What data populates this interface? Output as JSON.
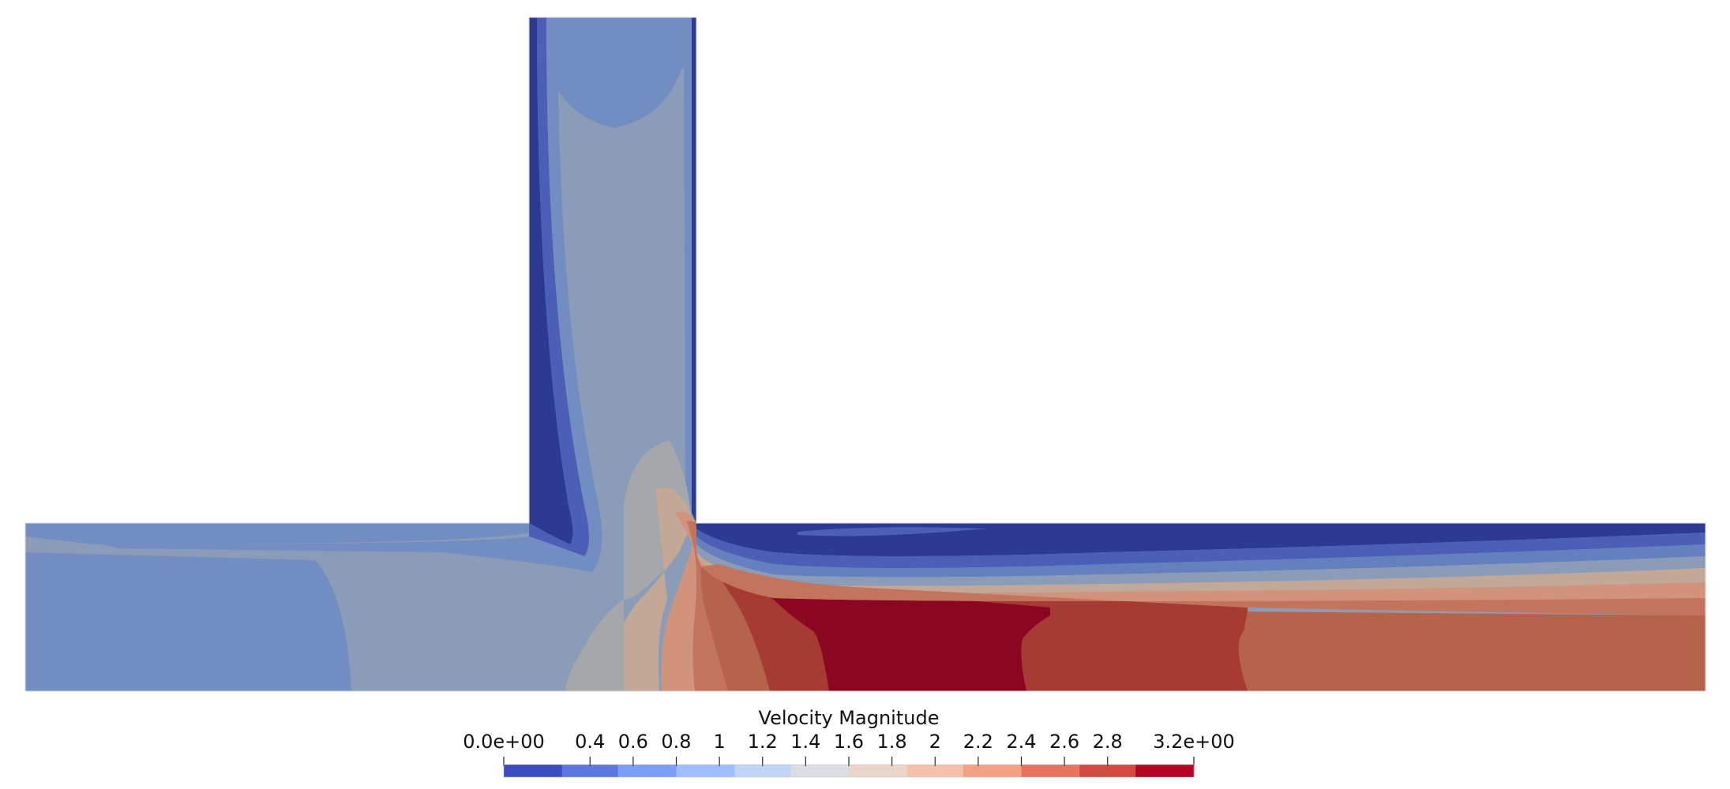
{
  "colorbar": {
    "title": "Velocity Magnitude",
    "range": [
      0.0,
      3.2
    ],
    "ticks": [
      {
        "value": 0.0,
        "label": "0.0e+00"
      },
      {
        "value": 0.4,
        "label": "0.4"
      },
      {
        "value": 0.6,
        "label": "0.6"
      },
      {
        "value": 0.8,
        "label": "0.8"
      },
      {
        "value": 1.0,
        "label": "1"
      },
      {
        "value": 1.2,
        "label": "1.2"
      },
      {
        "value": 1.4,
        "label": "1.4"
      },
      {
        "value": 1.6,
        "label": "1.6"
      },
      {
        "value": 1.8,
        "label": "1.8"
      },
      {
        "value": 2.0,
        "label": "2"
      },
      {
        "value": 2.2,
        "label": "2.2"
      },
      {
        "value": 2.4,
        "label": "2.4"
      },
      {
        "value": 2.6,
        "label": "2.6"
      },
      {
        "value": 2.8,
        "label": "2.8"
      },
      {
        "value": 3.2,
        "label": "3.2e+00"
      }
    ],
    "bands": [
      {
        "from": 0.0,
        "to": 0.27,
        "color": "#3b4cc0"
      },
      {
        "from": 0.27,
        "to": 0.53,
        "color": "#5a78e0"
      },
      {
        "from": 0.53,
        "to": 0.8,
        "color": "#7b9ff9"
      },
      {
        "from": 0.8,
        "to": 1.07,
        "color": "#9ebeff"
      },
      {
        "from": 1.07,
        "to": 1.33,
        "color": "#c0d4f5"
      },
      {
        "from": 1.33,
        "to": 1.6,
        "color": "#d9dce1"
      },
      {
        "from": 1.6,
        "to": 1.87,
        "color": "#ead5c8"
      },
      {
        "from": 1.87,
        "to": 2.13,
        "color": "#f5c1a9"
      },
      {
        "from": 2.13,
        "to": 2.4,
        "color": "#f4a183"
      },
      {
        "from": 2.4,
        "to": 2.67,
        "color": "#e7745b"
      },
      {
        "from": 2.67,
        "to": 2.93,
        "color": "#d24b40"
      },
      {
        "from": 2.93,
        "to": 3.2,
        "color": "#b40426"
      }
    ]
  },
  "field_colors": {
    "pipe_base": "#8b9cb8",
    "deep_blue": "#2d3a94",
    "mid_blue": "#4a5fb5",
    "light_blue": "#728dc2",
    "pale_blue": "#6580bf",
    "grey": "#a5a7aa",
    "tan": "#c3a898",
    "salmon": "#d1937a",
    "orange": "#c4745d",
    "light_red": "#b5644a",
    "red": "#a53b33",
    "dark_red": "#8b0621"
  }
}
